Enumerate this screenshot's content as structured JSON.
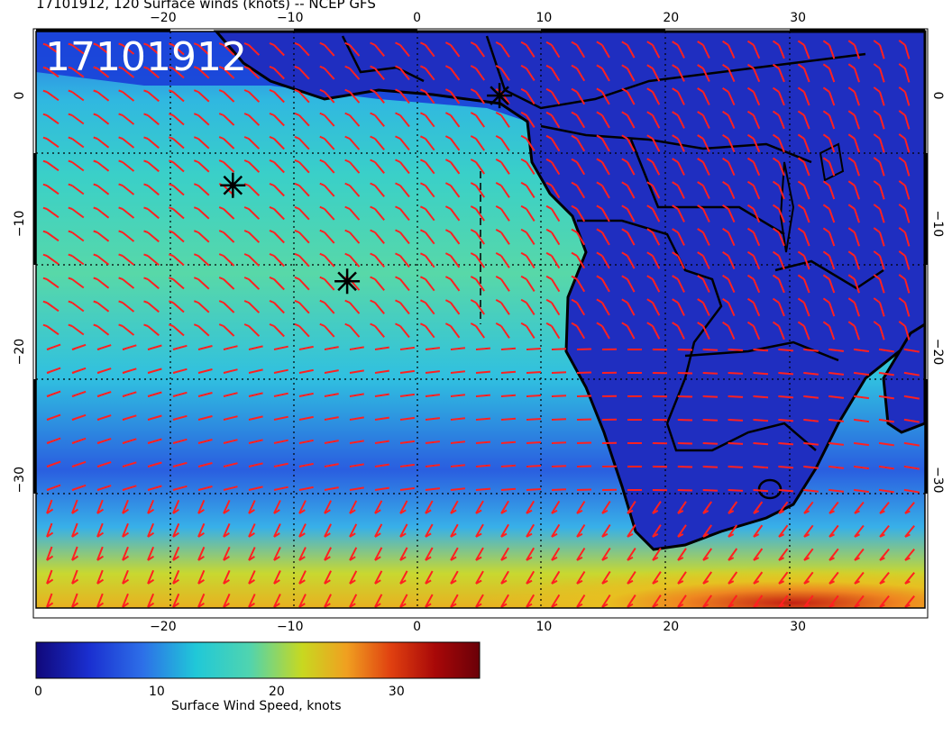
{
  "title": "17101912, 120 Surface winds (knots) -- NCEP GFS",
  "stamp": "17101912",
  "map": {
    "lon_range": [
      -30,
      40
    ],
    "lat_range": [
      -40,
      5
    ],
    "lon_ticks": [
      -20,
      -10,
      0,
      10,
      20,
      30
    ],
    "lat_ticks": [
      0,
      -10,
      -20,
      -30
    ],
    "lon_tick_labels": [
      "−20",
      "−10",
      "0",
      "10",
      "20",
      "30"
    ],
    "lat_tick_labels": [
      "0",
      "−10",
      "−20",
      "−30"
    ],
    "markers": [
      {
        "lon": -14.5,
        "lat": -7.0
      },
      {
        "lon": -5.5,
        "lat": -14.5
      },
      {
        "lon": 6.5,
        "lat": 0.0
      }
    ]
  },
  "colorbar": {
    "min": 0,
    "max": 37,
    "tick_values": [
      0,
      10,
      20,
      30
    ],
    "tick_labels": [
      "0",
      "10",
      "20",
      "30"
    ],
    "label": "Surface Wind Speed, knots",
    "colors": [
      "#10087a",
      "#1a2fd0",
      "#2d6fe8",
      "#20c8d8",
      "#4fd4b0",
      "#c8d820",
      "#f0a020",
      "#e04010",
      "#a80808",
      "#6a0008"
    ]
  },
  "colors": {
    "ocean_low": "#1a3fd8",
    "ocean_mid": "#30c8d8",
    "land": "#1e2eb0",
    "barb": "#ff2020",
    "coast": "#000000"
  }
}
